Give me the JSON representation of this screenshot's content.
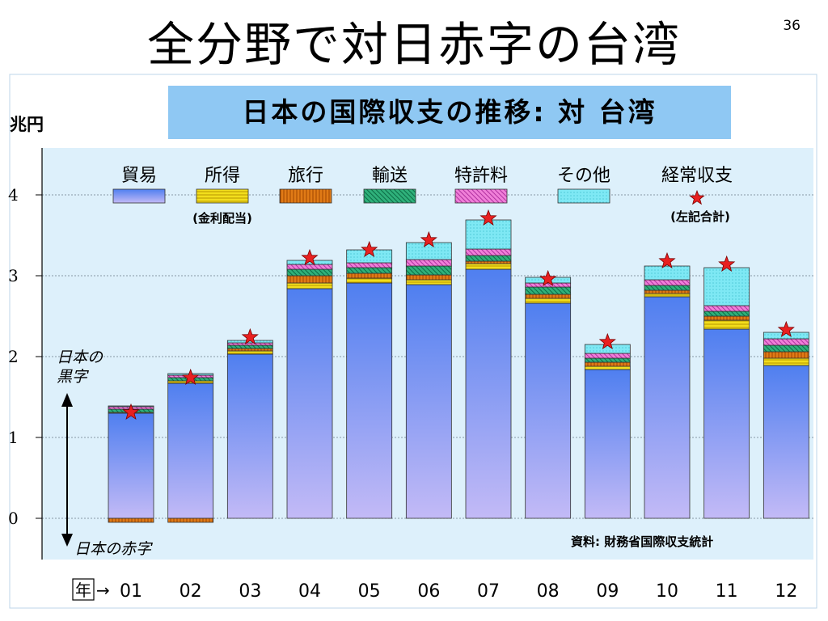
{
  "slide": {
    "title": "全分野で対日赤字の台湾",
    "page_number": "36"
  },
  "chart_data": {
    "type": "bar",
    "title": "日本の国際収支の推移: 対 台湾",
    "ylabel": "兆円",
    "ylim": [
      -0.5,
      4.5
    ],
    "yticks": [
      0,
      1,
      2,
      3,
      4
    ],
    "grid": true,
    "x_axis_prefix": "年",
    "x_axis_arrow": "→",
    "categories": [
      "01",
      "02",
      "03",
      "04",
      "05",
      "06",
      "07",
      "08",
      "09",
      "10",
      "11",
      "12"
    ],
    "series": [
      {
        "name": "貿易",
        "values": [
          1.3,
          1.67,
          2.03,
          2.84,
          2.91,
          2.89,
          3.08,
          2.66,
          1.84,
          2.74,
          2.34,
          1.89
        ],
        "color": "#7a9cf2"
      },
      {
        "name": "所得",
        "sub": "(金利配当)",
        "values": [
          0.01,
          0.03,
          0.04,
          0.07,
          0.06,
          0.06,
          0.07,
          0.06,
          0.04,
          0.04,
          0.11,
          0.09
        ],
        "color": "#f2de1c"
      },
      {
        "name": "旅行",
        "values": [
          -0.05,
          -0.05,
          0.03,
          0.09,
          0.06,
          0.06,
          0.03,
          0.05,
          0.05,
          0.04,
          0.05,
          0.08
        ],
        "color": "#e07a16"
      },
      {
        "name": "輸送",
        "values": [
          0.04,
          0.04,
          0.04,
          0.08,
          0.07,
          0.11,
          0.07,
          0.09,
          0.05,
          0.06,
          0.06,
          0.08
        ],
        "color": "#2fb07a"
      },
      {
        "name": "特許料",
        "values": [
          0.03,
          0.03,
          0.03,
          0.06,
          0.06,
          0.08,
          0.08,
          0.05,
          0.06,
          0.07,
          0.07,
          0.08
        ],
        "color": "#f07fd8"
      },
      {
        "name": "その他",
        "values": [
          0.01,
          0.02,
          0.03,
          0.05,
          0.16,
          0.21,
          0.36,
          0.07,
          0.11,
          0.17,
          0.47,
          0.08
        ],
        "color": "#7ee8f4"
      }
    ],
    "negative_values": [
      [
        -0.08,
        -0.08,
        -0.05
      ],
      [
        -0.06,
        -0.06,
        -0.05
      ]
    ],
    "current_account": {
      "name": "経常収支",
      "sub": "(左記合計)",
      "values": [
        1.31,
        1.74,
        2.24,
        3.22,
        3.32,
        3.44,
        3.71,
        2.96,
        2.18,
        3.18,
        3.14,
        2.33
      ],
      "color": "#e82020"
    },
    "annotations": {
      "surplus": "日本の\n黒字",
      "deficit": "日本の赤字",
      "source": "資料: 財務省国際収支統計"
    }
  }
}
